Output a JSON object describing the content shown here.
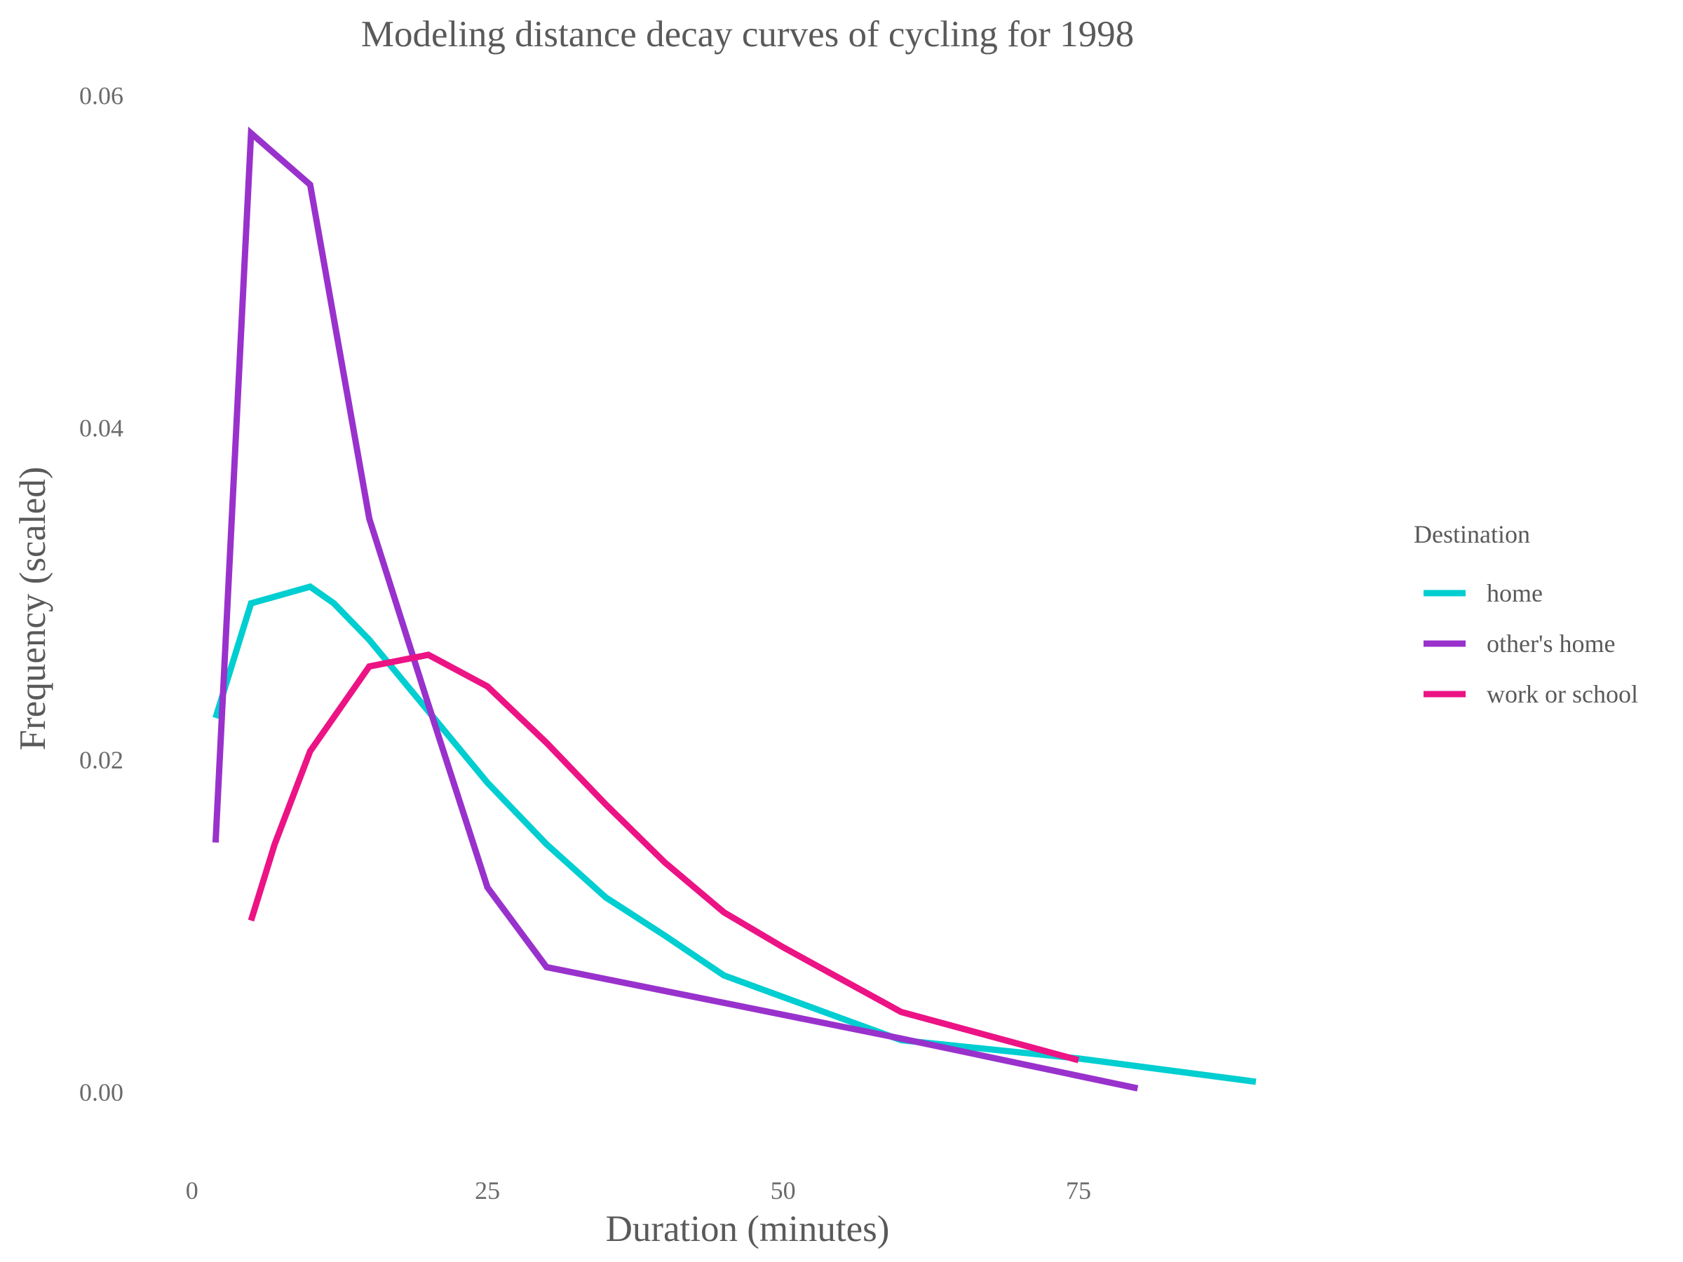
{
  "chart_data": {
    "type": "line",
    "title": "Modeling distance decay curves of cycling for 1998",
    "xlabel": "Duration (minutes)",
    "ylabel": "Frequency (scaled)",
    "xlim": [
      -2,
      96
    ],
    "ylim": [
      -0.0035,
      0.0615
    ],
    "x_ticks": [
      0,
      25,
      50,
      75
    ],
    "x_tick_labels": [
      "0",
      "25",
      "50",
      "75"
    ],
    "y_ticks": [
      0.0,
      0.02,
      0.04,
      0.06
    ],
    "y_tick_labels": [
      "0.00",
      "0.02",
      "0.04",
      "0.06"
    ],
    "grid": false,
    "legend": {
      "title": "Destination",
      "position": "right"
    },
    "series": [
      {
        "name": "home",
        "color": "#00CED1",
        "x": [
          2,
          5,
          10,
          12,
          15,
          20,
          25,
          30,
          35,
          40,
          45,
          50,
          55,
          60,
          75,
          90
        ],
        "y": [
          0.0225,
          0.0294,
          0.0304,
          0.0294,
          0.0272,
          0.0229,
          0.0186,
          0.0149,
          0.0117,
          0.0094,
          0.007,
          0.0057,
          0.0044,
          0.0031,
          0.002,
          0.0006
        ]
      },
      {
        "name": "other's home",
        "color": "#9932CC",
        "x": [
          2,
          5,
          10,
          15,
          20,
          25,
          30,
          60,
          80
        ],
        "y": [
          0.015,
          0.0577,
          0.0546,
          0.0345,
          0.0233,
          0.0123,
          0.0075,
          0.0032,
          0.0002
        ]
      },
      {
        "name": "work or school",
        "color": "#EC1385",
        "x": [
          5,
          7,
          10,
          15,
          20,
          25,
          30,
          35,
          40,
          45,
          50,
          60,
          75
        ],
        "y": [
          0.0103,
          0.0149,
          0.0205,
          0.0256,
          0.0263,
          0.0244,
          0.021,
          0.0173,
          0.0138,
          0.0108,
          0.0087,
          0.0048,
          0.0019
        ]
      }
    ]
  }
}
